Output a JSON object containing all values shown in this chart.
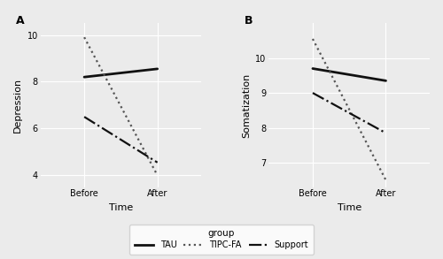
{
  "panel_A": {
    "title": "A",
    "ylabel": "Depression",
    "xlabel": "Time",
    "ylim": [
      3.5,
      10.5
    ],
    "yticks": [
      4,
      6,
      8,
      10
    ],
    "TAU": {
      "before": 8.2,
      "after": 8.55
    },
    "TIPC_FA": {
      "before": 9.9,
      "after": 4.0
    },
    "Support": {
      "before": 6.5,
      "after": 4.55
    }
  },
  "panel_B": {
    "title": "B",
    "ylabel": "Somatization",
    "xlabel": "Time",
    "ylim": [
      6.3,
      11.0
    ],
    "yticks": [
      7,
      8,
      9,
      10
    ],
    "TAU": {
      "before": 9.7,
      "after": 9.35
    },
    "TIPC_FA": {
      "before": 10.55,
      "after": 6.5
    },
    "Support": {
      "before": 9.0,
      "after": 7.85
    }
  },
  "xtick_labels": [
    "Before",
    "After"
  ],
  "bg_color": "#ebebeb",
  "TAU_style": {
    "linestyle": "-",
    "linewidth": 2.0,
    "color": "#111111"
  },
  "TIPC_FA_style": {
    "linestyle": ":",
    "linewidth": 1.6,
    "color": "#555555"
  },
  "Support_style": {
    "linestyle": "-.",
    "linewidth": 1.6,
    "color": "#111111"
  },
  "legend_labels": [
    "TAU",
    "TIPC-FA",
    "Support"
  ],
  "grid_color": "#ffffff",
  "font_family": "DejaVu Sans",
  "tick_fontsize": 7,
  "label_fontsize": 8
}
